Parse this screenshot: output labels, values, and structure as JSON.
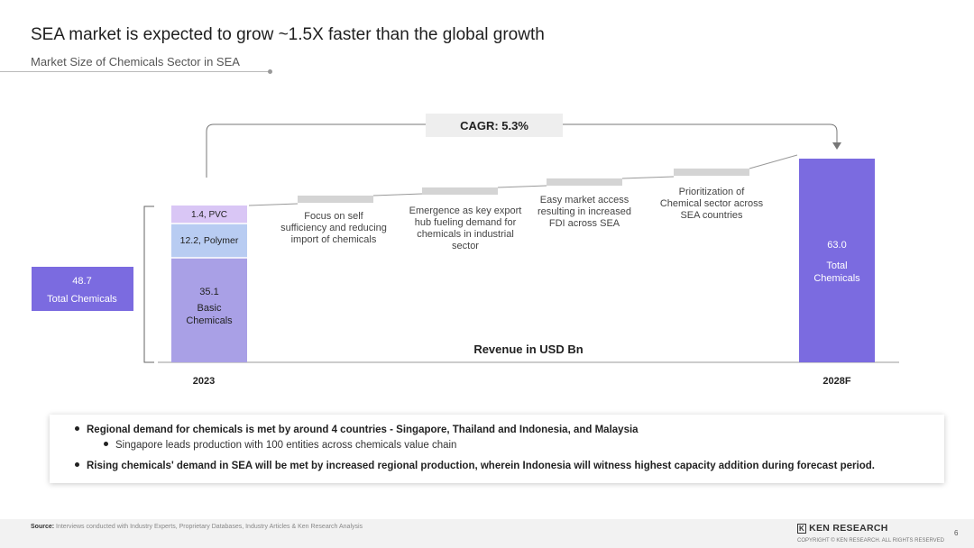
{
  "header": {
    "title": "SEA market is expected to grow ~1.5X faster than the global growth",
    "subtitle": "Market Size of Chemicals Sector in SEA"
  },
  "chart_data": {
    "type": "bar",
    "title": "",
    "categories": [
      "2023",
      "2028F"
    ],
    "bars_2023": [
      {
        "label": "35.1",
        "name": "Basic Chemicals",
        "value": 35.1,
        "color": "#a9a0e6"
      },
      {
        "label": "12.2, Polymer",
        "value": 12.2,
        "color": "#b8ccf2"
      },
      {
        "label": "1.4, PVC",
        "value": 1.4,
        "color": "#d9c6f5"
      }
    ],
    "total_2023": {
      "value": "48.7",
      "label": "Total Chemicals",
      "color": "#7b6be0"
    },
    "bar_2028": {
      "value": 63.0,
      "value_label": "63.0",
      "label": "Total Chemicals",
      "color": "#7b6be0"
    },
    "drivers": [
      "Focus on self sufficiency and reducing import of chemicals",
      "Emergence as key export hub fueling demand for chemicals in industrial sector",
      "Easy market access resulting in increased FDI across SEA",
      "Prioritization of Chemical sector across SEA countries"
    ],
    "cagr_label": "CAGR: 5.3%",
    "axis_label": "Revenue in USD Bn"
  },
  "bullets": {
    "b1": "Regional demand for chemicals is met by around 4 countries - Singapore, Thailand and Indonesia, and Malaysia",
    "b2": "Singapore leads production with 100 entities across chemicals value chain",
    "b3": "Rising chemicals' demand in SEA will be met by increased regional production, wherein Indonesia will witness highest capacity addition during forecast period."
  },
  "footer": {
    "source_label": "Source:",
    "source_text": "Interviews conducted with Industry Experts, Proprietary Databases, Industry Articles & Ken Research Analysis",
    "logo_icon": "K",
    "logo_text": "KEN RESEARCH",
    "copyright": "COPYRIGHT © KEN RESEARCH. ALL RIGHTS RESERVED",
    "page": "6"
  }
}
